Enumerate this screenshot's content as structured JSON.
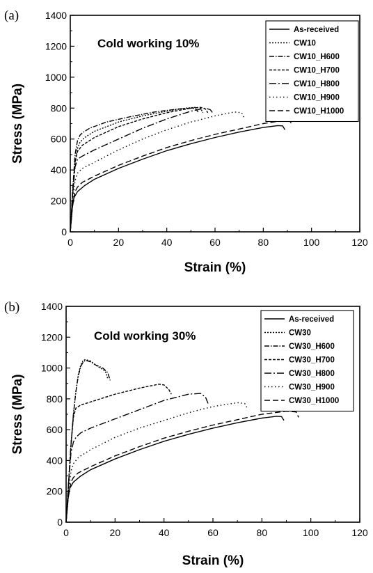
{
  "chart_data": [
    {
      "type": "line",
      "panel_label": "(a)",
      "annotation": "Cold working 10%",
      "xlabel": "Strain (%)",
      "ylabel": "Stress (MPa)",
      "xlim": [
        0,
        120
      ],
      "ylim": [
        0,
        1400
      ],
      "xticks": [
        "0",
        "20",
        "40",
        "60",
        "80",
        "100",
        "120"
      ],
      "yticks": [
        "0",
        "200",
        "400",
        "600",
        "800",
        "1000",
        "1200",
        "1400"
      ],
      "grid": false,
      "legend_position": "top-right",
      "series": [
        {
          "name": "As-received",
          "dash": "solid",
          "x": [
            0,
            0.8,
            1.5,
            3,
            6,
            10,
            20,
            30,
            40,
            50,
            60,
            70,
            80,
            86,
            88,
            89
          ],
          "y": [
            0,
            150,
            220,
            260,
            300,
            340,
            410,
            470,
            525,
            570,
            610,
            645,
            675,
            687,
            685,
            660
          ]
        },
        {
          "name": "CW10",
          "dash": "2,2",
          "x": [
            0,
            1,
            2,
            3,
            4,
            6,
            10,
            20,
            30,
            40,
            48,
            52,
            54,
            55
          ],
          "y": [
            0,
            250,
            450,
            540,
            580,
            610,
            650,
            710,
            750,
            780,
            800,
            805,
            800,
            770
          ]
        },
        {
          "name": "CW10_H600",
          "dash": "7,2,1.5,2",
          "x": [
            0,
            1,
            2,
            3,
            4,
            5,
            8,
            15,
            25,
            35,
            45,
            50,
            52,
            53
          ],
          "y": [
            0,
            280,
            500,
            590,
            625,
            640,
            670,
            710,
            745,
            775,
            795,
            800,
            795,
            775
          ]
        },
        {
          "name": "CW10_H700",
          "dash": "4,2",
          "x": [
            0,
            1,
            2,
            3,
            5,
            10,
            20,
            30,
            40,
            50,
            54,
            56,
            57
          ],
          "y": [
            0,
            250,
            450,
            520,
            560,
            610,
            680,
            730,
            770,
            800,
            805,
            795,
            770
          ]
        },
        {
          "name": "CW10_H800",
          "dash": "10,3,2,3",
          "x": [
            0,
            1,
            2,
            3,
            5,
            10,
            20,
            30,
            40,
            50,
            56,
            58,
            59
          ],
          "y": [
            0,
            250,
            420,
            470,
            490,
            530,
            600,
            670,
            730,
            780,
            800,
            790,
            770
          ]
        },
        {
          "name": "CW10_H900",
          "dash": "1.5,3.5",
          "x": [
            0,
            1,
            2,
            3,
            5,
            10,
            20,
            30,
            40,
            50,
            60,
            68,
            71,
            72
          ],
          "y": [
            0,
            200,
            330,
            380,
            410,
            450,
            530,
            600,
            660,
            710,
            750,
            775,
            770,
            740
          ]
        },
        {
          "name": "CW10_H1000",
          "dash": "8,4",
          "x": [
            0,
            1,
            2,
            3,
            5,
            10,
            20,
            30,
            40,
            50,
            60,
            70,
            80,
            88,
            91,
            92
          ],
          "y": [
            0,
            180,
            260,
            290,
            320,
            360,
            430,
            490,
            545,
            590,
            630,
            665,
            700,
            720,
            718,
            690
          ]
        }
      ]
    },
    {
      "type": "line",
      "panel_label": "(b)",
      "annotation": "Cold working 30%",
      "xlabel": "Strain (%)",
      "ylabel": "Stress (MPa)",
      "xlim": [
        0,
        120
      ],
      "ylim": [
        0,
        1400
      ],
      "xticks": [
        "0",
        "20",
        "40",
        "60",
        "80",
        "100",
        "120"
      ],
      "yticks": [
        "0",
        "200",
        "400",
        "600",
        "800",
        "1000",
        "1200",
        "1400"
      ],
      "grid": false,
      "legend_position": "top-right",
      "series": [
        {
          "name": "As-received",
          "dash": "solid",
          "x": [
            0,
            0.8,
            1.5,
            3,
            6,
            10,
            20,
            30,
            40,
            50,
            60,
            70,
            80,
            86,
            88,
            89
          ],
          "y": [
            0,
            150,
            220,
            260,
            300,
            340,
            410,
            470,
            525,
            570,
            610,
            645,
            675,
            687,
            685,
            660
          ]
        },
        {
          "name": "CW30",
          "dash": "2,2",
          "x": [
            0,
            1,
            2,
            3,
            4,
            5,
            6,
            7,
            8,
            10,
            12,
            14,
            16,
            17
          ],
          "y": [
            0,
            250,
            500,
            700,
            850,
            960,
            1020,
            1050,
            1055,
            1045,
            1020,
            1000,
            980,
            930
          ]
        },
        {
          "name": "CW30_H600",
          "dash": "7,2,1.5,2",
          "x": [
            0,
            1,
            2,
            3,
            4,
            5,
            6,
            7,
            8,
            10,
            12,
            15,
            17,
            18
          ],
          "y": [
            0,
            250,
            500,
            700,
            850,
            950,
            1010,
            1040,
            1050,
            1040,
            1020,
            1000,
            970,
            920
          ]
        },
        {
          "name": "CW30_H700",
          "dash": "4,2",
          "x": [
            0,
            1,
            2,
            3,
            4,
            6,
            10,
            20,
            30,
            38,
            40,
            42,
            43
          ],
          "y": [
            0,
            250,
            500,
            680,
            740,
            760,
            780,
            830,
            870,
            895,
            890,
            860,
            830
          ]
        },
        {
          "name": "CW30_H800",
          "dash": "10,3,2,3",
          "x": [
            0,
            1,
            2,
            3,
            4,
            6,
            10,
            20,
            30,
            40,
            50,
            55,
            57,
            58
          ],
          "y": [
            0,
            250,
            450,
            520,
            550,
            580,
            610,
            670,
            730,
            790,
            830,
            835,
            810,
            770
          ]
        },
        {
          "name": "CW30_H900",
          "dash": "1.5,3.5",
          "x": [
            0,
            1,
            2,
            3,
            5,
            10,
            20,
            30,
            40,
            50,
            60,
            70,
            73,
            74
          ],
          "y": [
            0,
            200,
            330,
            380,
            420,
            470,
            550,
            610,
            660,
            710,
            750,
            775,
            770,
            740
          ]
        },
        {
          "name": "CW30_H1000",
          "dash": "8,4",
          "x": [
            0,
            1,
            2,
            3,
            5,
            10,
            20,
            30,
            40,
            50,
            60,
            70,
            80,
            90,
            94,
            95
          ],
          "y": [
            0,
            180,
            260,
            290,
            320,
            360,
            430,
            490,
            545,
            590,
            630,
            665,
            700,
            720,
            715,
            680
          ]
        }
      ]
    }
  ]
}
